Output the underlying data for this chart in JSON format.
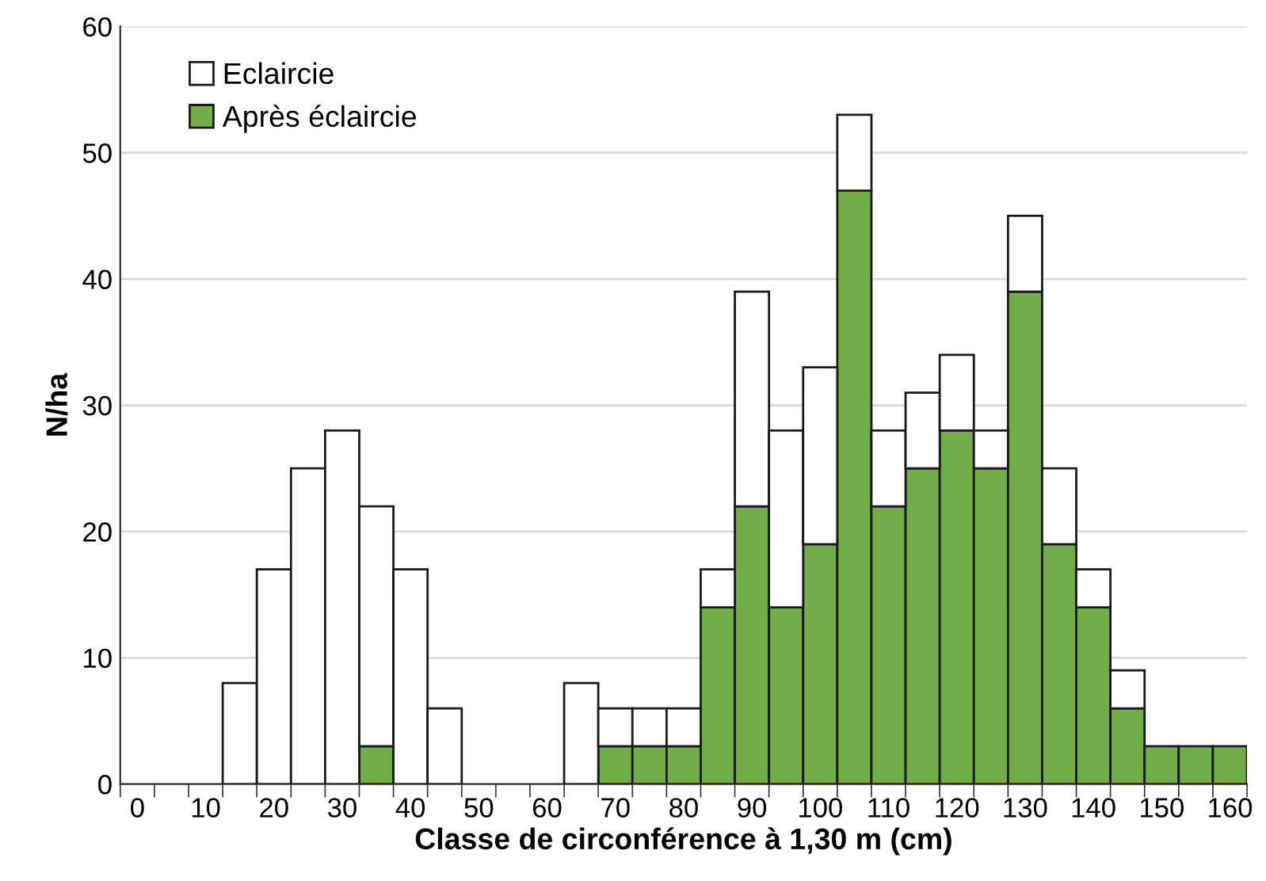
{
  "chart_data": {
    "type": "bar",
    "stacked": true,
    "xlabel": "Classe de circonférence à 1,30 m (cm)",
    "ylabel": "N/ha",
    "categories": [
      "0",
      null,
      "10",
      null,
      "20",
      null,
      "30",
      null,
      "40",
      null,
      "50",
      null,
      "60",
      null,
      "70",
      null,
      "80",
      null,
      "90",
      null,
      "100",
      null,
      "110",
      null,
      "120",
      null,
      "130",
      null,
      "140",
      null,
      "150",
      null,
      "160"
    ],
    "series": [
      {
        "name": "Après éclaircie",
        "color": "#70ad47",
        "values": [
          0,
          0,
          0,
          0,
          0,
          0,
          0,
          3,
          0,
          0,
          0,
          0,
          0,
          0,
          3,
          3,
          3,
          14,
          22,
          14,
          19,
          47,
          22,
          25,
          28,
          25,
          39,
          19,
          14,
          6,
          3,
          3,
          3
        ]
      },
      {
        "name": "Eclaircie",
        "color": "#ffffff",
        "values": [
          0,
          0,
          0,
          8,
          17,
          25,
          28,
          19,
          17,
          6,
          0,
          0,
          0,
          8,
          3,
          3,
          3,
          3,
          17,
          14,
          14,
          6,
          6,
          6,
          6,
          3,
          6,
          6,
          3,
          3,
          0,
          0,
          0
        ]
      }
    ],
    "ylim": [
      0,
      60
    ],
    "yticks": [
      0,
      10,
      20,
      30,
      40,
      50,
      60
    ],
    "grid": "y",
    "legend": "top left"
  }
}
